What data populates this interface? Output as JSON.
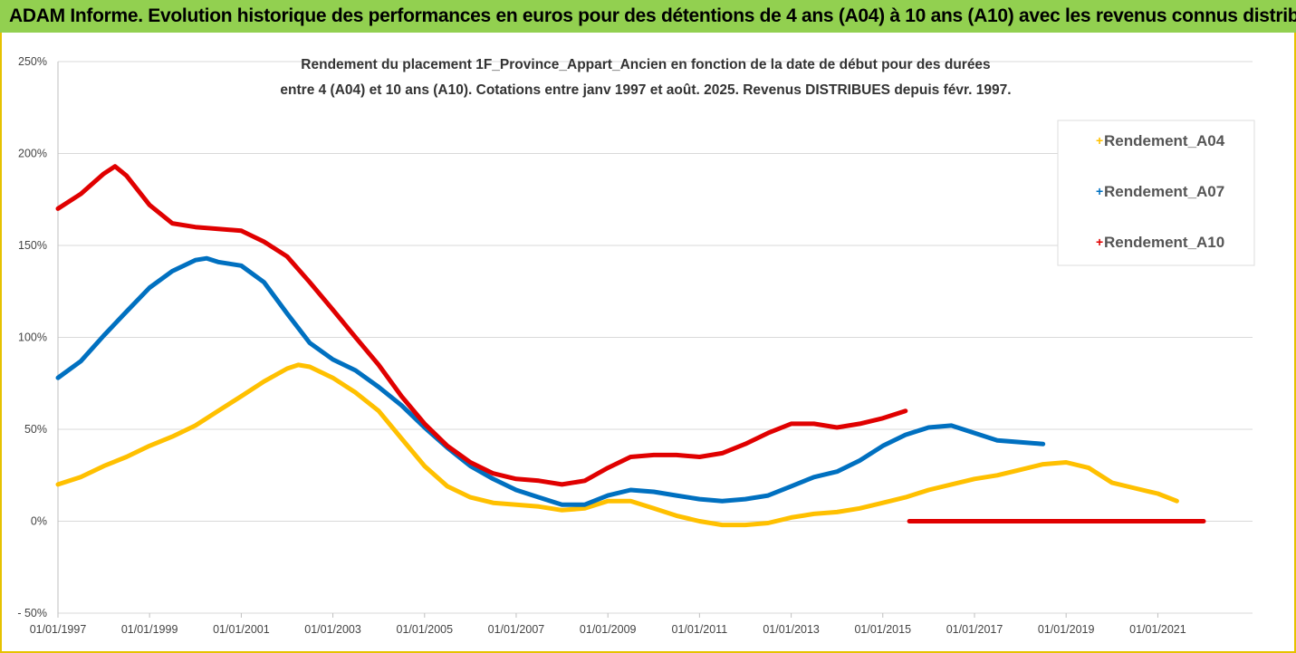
{
  "header": {
    "title": "ADAM Informe. Evolution historique des performances en euros pour des détentions de 4 ans (A04) à 10 ans (A10) avec les revenus connus distribués"
  },
  "chart_data": {
    "type": "line",
    "title": "",
    "subtitle_lines": [
      "Rendement du placement 1F_Province_Appart_Ancien en fonction de la date de début pour des durées",
      "entre 4 (A04) et 10 ans (A10). Cotations entre janv 1997 et août. 2025. Revenus DISTRIBUES depuis févr. 1997."
    ],
    "xlabel": "",
    "ylabel": "",
    "x_tick_labels": [
      "01/01/1997",
      "01/01/1999",
      "01/01/2001",
      "01/01/2003",
      "01/01/2005",
      "01/01/2007",
      "01/01/2009",
      "01/01/2011",
      "01/01/2013",
      "01/01/2015",
      "01/01/2017",
      "01/01/2019",
      "01/01/2021"
    ],
    "y_tick_labels": [
      "250%",
      "200%",
      "150%",
      "100%",
      "50%",
      "0%",
      "- 50%"
    ],
    "xlim": [
      "1997-01-01",
      "2022-01-01"
    ],
    "ylim": [
      -50,
      250
    ],
    "y_unit": "%",
    "grid": "horizontal",
    "legend_position": "right",
    "series": [
      {
        "name": "Rendement_A04",
        "color": "#ffc000",
        "points": [
          [
            "1997-01-01",
            20
          ],
          [
            "1997-07-01",
            24
          ],
          [
            "1998-01-01",
            30
          ],
          [
            "1998-07-01",
            35
          ],
          [
            "1999-01-01",
            41
          ],
          [
            "1999-07-01",
            46
          ],
          [
            "2000-01-01",
            52
          ],
          [
            "2000-07-01",
            60
          ],
          [
            "2001-01-01",
            68
          ],
          [
            "2001-07-01",
            76
          ],
          [
            "2002-01-01",
            83
          ],
          [
            "2002-04-01",
            85
          ],
          [
            "2002-07-01",
            84
          ],
          [
            "2003-01-01",
            78
          ],
          [
            "2003-07-01",
            70
          ],
          [
            "2004-01-01",
            60
          ],
          [
            "2004-07-01",
            45
          ],
          [
            "2005-01-01",
            30
          ],
          [
            "2005-07-01",
            19
          ],
          [
            "2006-01-01",
            13
          ],
          [
            "2006-07-01",
            10
          ],
          [
            "2007-01-01",
            9
          ],
          [
            "2007-07-01",
            8
          ],
          [
            "2008-01-01",
            6
          ],
          [
            "2008-07-01",
            7
          ],
          [
            "2009-01-01",
            11
          ],
          [
            "2009-07-01",
            11
          ],
          [
            "2010-01-01",
            7
          ],
          [
            "2010-07-01",
            3
          ],
          [
            "2011-01-01",
            0
          ],
          [
            "2011-07-01",
            -2
          ],
          [
            "2012-01-01",
            -2
          ],
          [
            "2012-07-01",
            -1
          ],
          [
            "2013-01-01",
            2
          ],
          [
            "2013-07-01",
            4
          ],
          [
            "2014-01-01",
            5
          ],
          [
            "2014-07-01",
            7
          ],
          [
            "2015-01-01",
            10
          ],
          [
            "2015-07-01",
            13
          ],
          [
            "2016-01-01",
            17
          ],
          [
            "2016-07-01",
            20
          ],
          [
            "2017-01-01",
            23
          ],
          [
            "2017-07-01",
            25
          ],
          [
            "2018-01-01",
            28
          ],
          [
            "2018-07-01",
            31
          ],
          [
            "2019-01-01",
            32
          ],
          [
            "2019-07-01",
            29
          ],
          [
            "2020-01-01",
            21
          ],
          [
            "2020-07-01",
            18
          ],
          [
            "2021-01-01",
            15
          ],
          [
            "2021-06-01",
            11
          ]
        ]
      },
      {
        "name": "Rendement_A07",
        "color": "#0070c0",
        "points": [
          [
            "1997-01-01",
            78
          ],
          [
            "1997-07-01",
            87
          ],
          [
            "1998-01-01",
            101
          ],
          [
            "1998-07-01",
            114
          ],
          [
            "1999-01-01",
            127
          ],
          [
            "1999-07-01",
            136
          ],
          [
            "2000-01-01",
            142
          ],
          [
            "2000-04-01",
            143
          ],
          [
            "2000-07-01",
            141
          ],
          [
            "2001-01-01",
            139
          ],
          [
            "2001-07-01",
            130
          ],
          [
            "2002-01-01",
            113
          ],
          [
            "2002-07-01",
            97
          ],
          [
            "2003-01-01",
            88
          ],
          [
            "2003-07-01",
            82
          ],
          [
            "2004-01-01",
            73
          ],
          [
            "2004-07-01",
            63
          ],
          [
            "2005-01-01",
            51
          ],
          [
            "2005-07-01",
            40
          ],
          [
            "2006-01-01",
            30
          ],
          [
            "2006-07-01",
            23
          ],
          [
            "2007-01-01",
            17
          ],
          [
            "2007-07-01",
            13
          ],
          [
            "2008-01-01",
            9
          ],
          [
            "2008-07-01",
            9
          ],
          [
            "2009-01-01",
            14
          ],
          [
            "2009-07-01",
            17
          ],
          [
            "2010-01-01",
            16
          ],
          [
            "2010-07-01",
            14
          ],
          [
            "2011-01-01",
            12
          ],
          [
            "2011-07-01",
            11
          ],
          [
            "2012-01-01",
            12
          ],
          [
            "2012-07-01",
            14
          ],
          [
            "2013-01-01",
            19
          ],
          [
            "2013-07-01",
            24
          ],
          [
            "2014-01-01",
            27
          ],
          [
            "2014-07-01",
            33
          ],
          [
            "2015-01-01",
            41
          ],
          [
            "2015-07-01",
            47
          ],
          [
            "2016-01-01",
            51
          ],
          [
            "2016-07-01",
            52
          ],
          [
            "2017-01-01",
            48
          ],
          [
            "2017-07-01",
            44
          ],
          [
            "2018-01-01",
            43
          ],
          [
            "2018-07-01",
            42
          ]
        ]
      },
      {
        "name": "Rendement_A10",
        "color": "#e00000",
        "points": [
          [
            "1997-01-01",
            170
          ],
          [
            "1997-07-01",
            178
          ],
          [
            "1998-01-01",
            189
          ],
          [
            "1998-04-01",
            193
          ],
          [
            "1998-07-01",
            188
          ],
          [
            "1999-01-01",
            172
          ],
          [
            "1999-07-01",
            162
          ],
          [
            "2000-01-01",
            160
          ],
          [
            "2000-07-01",
            159
          ],
          [
            "2001-01-01",
            158
          ],
          [
            "2001-07-01",
            152
          ],
          [
            "2002-01-01",
            144
          ],
          [
            "2002-07-01",
            130
          ],
          [
            "2003-01-01",
            115
          ],
          [
            "2003-07-01",
            100
          ],
          [
            "2004-01-01",
            85
          ],
          [
            "2004-07-01",
            68
          ],
          [
            "2005-01-01",
            53
          ],
          [
            "2005-07-01",
            41
          ],
          [
            "2006-01-01",
            32
          ],
          [
            "2006-07-01",
            26
          ],
          [
            "2007-01-01",
            23
          ],
          [
            "2007-07-01",
            22
          ],
          [
            "2008-01-01",
            20
          ],
          [
            "2008-07-01",
            22
          ],
          [
            "2009-01-01",
            29
          ],
          [
            "2009-07-01",
            35
          ],
          [
            "2010-01-01",
            36
          ],
          [
            "2010-07-01",
            36
          ],
          [
            "2011-01-01",
            35
          ],
          [
            "2011-07-01",
            37
          ],
          [
            "2012-01-01",
            42
          ],
          [
            "2012-07-01",
            48
          ],
          [
            "2013-01-01",
            53
          ],
          [
            "2013-07-01",
            53
          ],
          [
            "2014-01-01",
            51
          ],
          [
            "2014-07-01",
            53
          ],
          [
            "2015-01-01",
            56
          ],
          [
            "2015-07-01",
            60
          ],
          [
            "2015-08-01",
            0
          ],
          [
            "2016-07-01",
            0
          ],
          [
            "2017-07-01",
            0
          ],
          [
            "2018-07-01",
            0
          ],
          [
            "2019-07-01",
            0
          ],
          [
            "2020-07-01",
            0
          ],
          [
            "2021-07-01",
            0
          ],
          [
            "2022-01-01",
            0
          ]
        ]
      }
    ]
  }
}
